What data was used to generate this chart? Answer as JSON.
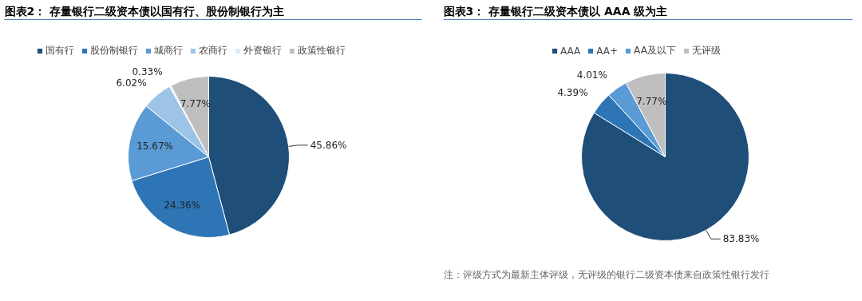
{
  "chart_data": [
    {
      "type": "pie",
      "title": "图表2：  存量银行二级资本债以国有行、股份制银行为主",
      "categories": [
        "国有行",
        "股份制银行",
        "城商行",
        "农商行",
        "外资银行",
        "政策性银行"
      ],
      "values": [
        45.86,
        24.36,
        15.67,
        6.02,
        0.33,
        7.77
      ],
      "colors": [
        "#1f4e79",
        "#2e75b6",
        "#5b9bd5",
        "#9dc3e6",
        "#deebf7",
        "#bfbfbf"
      ],
      "value_labels": [
        "45.86%",
        "24.36%",
        "15.67%",
        "6.02%",
        "0.33%",
        "7.77%"
      ],
      "legend": "top"
    },
    {
      "type": "pie",
      "title": "图表3：  存量银行二级资本债以 AAA 级为主",
      "categories": [
        "AAA",
        "AA+",
        "AA及以下",
        "无评级"
      ],
      "values": [
        83.83,
        4.39,
        4.01,
        7.77
      ],
      "colors": [
        "#1f4e79",
        "#2e75b6",
        "#5b9bd5",
        "#bfbfbf"
      ],
      "value_labels": [
        "83.83%",
        "4.39%",
        "4.01%",
        "7.77%"
      ],
      "legend": "top",
      "annotations": [
        "注：评级方式为最新主体评级，无评级的银行二级资本债来自政策性银行发行"
      ]
    }
  ]
}
